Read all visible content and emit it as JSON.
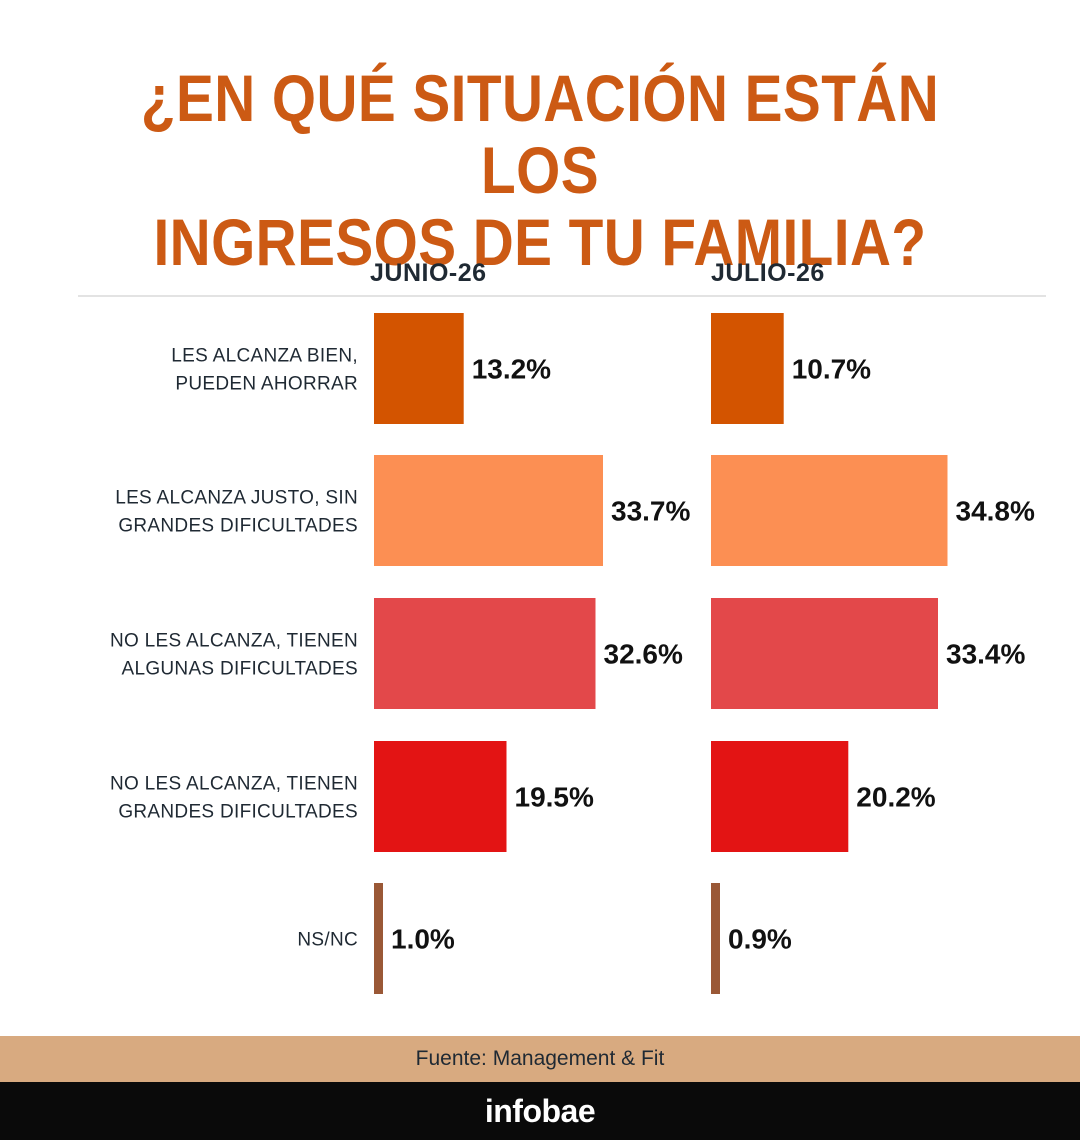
{
  "title": "¿EN QUÉ SITUACIÓN ESTÁN LOS\nINGRESOS DE TU FAMILIA?",
  "colors": {
    "title": "#cc5a14",
    "source_band": "#d8aa80",
    "footer": "#0a0a0a"
  },
  "chart_data": {
    "type": "bar",
    "orientation": "horizontal",
    "categories": [
      [
        "LES ALCANZA BIEN,",
        "PUEDEN AHORRAR"
      ],
      [
        "LES ALCANZA JUSTO, SIN",
        "GRANDES DIFICULTADES"
      ],
      [
        "NO LES ALCANZA, TIENEN",
        "ALGUNAS DIFICULTADES"
      ],
      [
        "NO LES ALCANZA, TIENEN",
        "GRANDES DIFICULTADES"
      ],
      [
        "NS/NC"
      ]
    ],
    "category_colors": [
      "#d35400",
      "#fc8f53",
      "#e3484a",
      "#e31414",
      "#9a5836"
    ],
    "series": [
      {
        "name": "JUNIO-26",
        "values": [
          13.2,
          33.7,
          32.6,
          19.5,
          1.0
        ],
        "labels": [
          "13.2%",
          "33.7%",
          "32.6%",
          "19.5%",
          "1.0%"
        ]
      },
      {
        "name": "JULIO-26",
        "values": [
          10.7,
          34.8,
          33.4,
          20.2,
          0.9
        ],
        "labels": [
          "10.7%",
          "34.8%",
          "33.4%",
          "20.2%",
          "0.9%"
        ]
      }
    ],
    "xlim": [
      0,
      35
    ],
    "grid": false,
    "legend": "top"
  },
  "source": "Fuente: Management & Fit",
  "brand": "infobae"
}
